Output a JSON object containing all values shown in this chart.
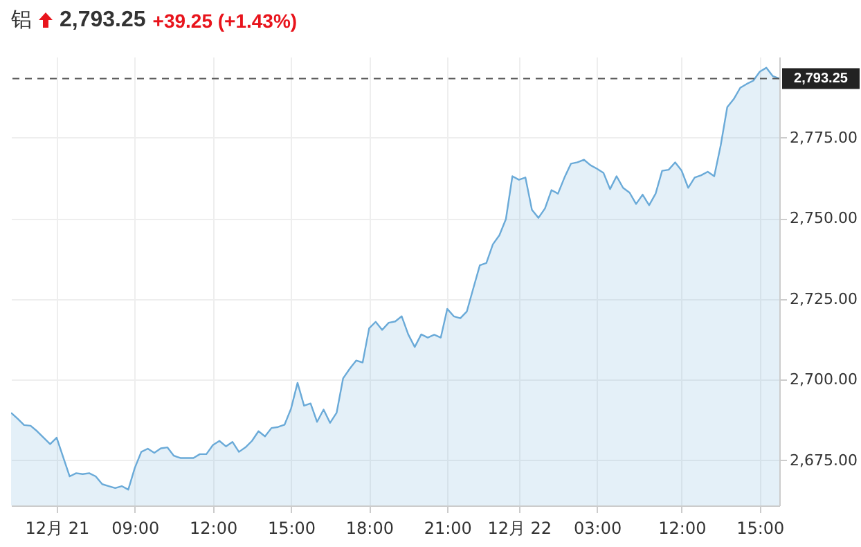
{
  "chart_data": {
    "type": "area",
    "title": "铝",
    "annotations": [
      "2,793.25",
      "+39.25 (+1.43%)"
    ],
    "categories": [
      null,
      null,
      null,
      null,
      null,
      null,
      null,
      "12月 21",
      null,
      null,
      null,
      null,
      null,
      null,
      null,
      null,
      null,
      null,
      null,
      "09:00",
      null,
      null,
      null,
      null,
      null,
      null,
      null,
      null,
      null,
      null,
      null,
      "12:00",
      null,
      null,
      null,
      null,
      null,
      null,
      null,
      null,
      null,
      null,
      null,
      "15:00",
      null,
      null,
      null,
      null,
      null,
      null,
      null,
      null,
      null,
      null,
      null,
      "18:00",
      null,
      null,
      null,
      null,
      null,
      null,
      null,
      null,
      null,
      null,
      null,
      "21:00",
      null,
      null,
      null,
      null,
      null,
      null,
      null,
      null,
      null,
      null,
      "12月 22",
      null,
      null,
      null,
      null,
      null,
      null,
      null,
      null,
      null,
      null,
      null,
      "03:00",
      null,
      null,
      null,
      null,
      null,
      null,
      null,
      null,
      null,
      null,
      null,
      null,
      "12:00",
      null,
      null,
      null,
      null,
      null,
      null,
      null,
      null,
      null,
      null,
      null,
      "15:00",
      null,
      null,
      null
    ],
    "series": [
      {
        "color": "#6aaad8",
        "values": [
          2689.7,
          2687.9,
          2685.9,
          2685.7,
          2684,
          2682,
          2680,
          2682,
          2676,
          2670,
          2671,
          2670.7,
          2671,
          2670,
          2667.6,
          2667,
          2666.4,
          2667,
          2665.9,
          2672.6,
          2677.6,
          2678.6,
          2677.3,
          2678.7,
          2679,
          2676.4,
          2675.7,
          2675.7,
          2675.7,
          2676.9,
          2676.9,
          2679.7,
          2681,
          2679.3,
          2680.7,
          2677.6,
          2679,
          2681,
          2684,
          2682.4,
          2685,
          2685.3,
          2686,
          2691,
          2699,
          2691.9,
          2692.6,
          2686.9,
          2690.7,
          2686.6,
          2689.7,
          2700.4,
          2703.3,
          2705.9,
          2705.3,
          2715.9,
          2717.9,
          2715.4,
          2717.6,
          2718,
          2719.6,
          2714,
          2710.1,
          2714,
          2713,
          2713.9,
          2713,
          2721.9,
          2719.6,
          2719,
          2721.1,
          2728.3,
          2735.4,
          2736.1,
          2741.9,
          2744.7,
          2749.7,
          2763,
          2761.9,
          2762.6,
          2752.6,
          2750.1,
          2753,
          2758.7,
          2757.6,
          2762.6,
          2766.9,
          2767.3,
          2768.1,
          2766.4,
          2765.3,
          2764,
          2759,
          2763,
          2759.4,
          2757.9,
          2754.4,
          2757.3,
          2754,
          2757.6,
          2764.7,
          2765,
          2767.3,
          2764.7,
          2759.4,
          2762.6,
          2763.3,
          2764.4,
          2763,
          2772.6,
          2784.4,
          2786.9,
          2790.4,
          2791.6,
          2792.6,
          2795.4,
          2796.6,
          2794,
          2793.25
        ]
      }
    ],
    "ylim": [
      2661,
      2800
    ],
    "yticks": [
      {
        "value": 2675,
        "label": "2,675.00"
      },
      {
        "value": 2700,
        "label": "2,700.00"
      },
      {
        "value": 2725,
        "label": "2,725.00"
      },
      {
        "value": 2750,
        "label": "2,750.00"
      },
      {
        "value": 2775,
        "label": "2,775.00"
      }
    ],
    "ref_lines": [
      {
        "axis": "y",
        "value": 2793.25,
        "label": "2,793.25",
        "color": "#555555",
        "line_style": "dashed"
      }
    ],
    "grid": true
  }
}
